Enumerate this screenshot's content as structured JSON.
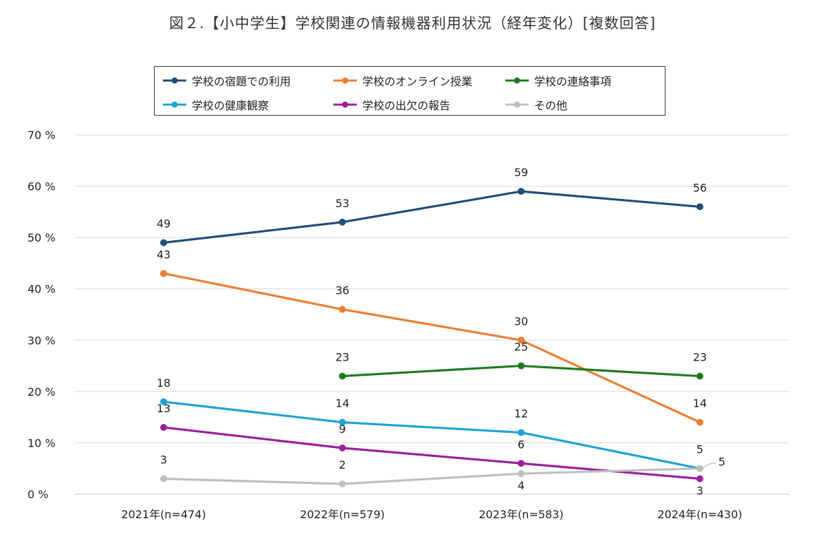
{
  "chart_data": {
    "type": "line",
    "title": "図２.【小中学生】学校関連の情報機器利用状況（経年変化）[複数回答]",
    "categories": [
      "2021年(n=474)",
      "2022年(n=579)",
      "2023年(n=583)",
      "2024年(n=430)"
    ],
    "yticks": [
      "0 %",
      "10 %",
      "20 %",
      "30 %",
      "40 %",
      "50 %",
      "60 %",
      "70 %"
    ],
    "ylim": [
      0,
      70
    ],
    "xlabel": "",
    "ylabel": "",
    "grid": true,
    "legend_position": "top",
    "series": [
      {
        "name": "学校の宿題での利用",
        "color": "#1f4e79",
        "values": [
          49,
          53,
          59,
          56
        ],
        "labels": [
          "49",
          "53",
          "59",
          "56"
        ]
      },
      {
        "name": "学校のオンライン授業",
        "color": "#ed7d31",
        "values": [
          43,
          36,
          30,
          14
        ],
        "labels": [
          "43",
          "36",
          "30",
          "14"
        ]
      },
      {
        "name": "学校の連絡事項",
        "color": "#1e7a1e",
        "values": [
          null,
          23,
          25,
          23
        ],
        "labels": [
          null,
          "23",
          "25",
          "23"
        ]
      },
      {
        "name": "学校の健康観察",
        "color": "#1fa2d6",
        "values": [
          18,
          14,
          12,
          5
        ],
        "labels": [
          "18",
          "14",
          "12",
          "5"
        ]
      },
      {
        "name": "学校の出欠の報告",
        "color": "#9b1f9b",
        "values": [
          13,
          9,
          6,
          3
        ],
        "labels": [
          "13",
          "9",
          "6",
          "3"
        ]
      },
      {
        "name": "その他",
        "color": "#bfbfbf",
        "values": [
          3,
          2,
          4,
          5
        ],
        "labels": [
          "3",
          "2",
          "4",
          "5"
        ]
      }
    ]
  }
}
